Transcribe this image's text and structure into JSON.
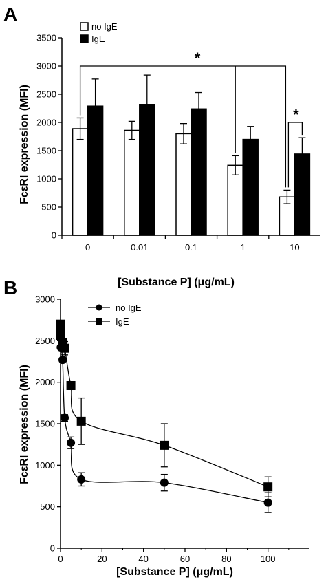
{
  "chart_data": [
    {
      "panel": "A",
      "type": "bar",
      "categories": [
        "0",
        "0.01",
        "0.1",
        "1",
        "10"
      ],
      "series": [
        {
          "name": "no IgE",
          "values": [
            1890,
            1860,
            1800,
            1240,
            680
          ],
          "errors": [
            190,
            160,
            180,
            170,
            120
          ],
          "color": "#ffffff"
        },
        {
          "name": "IgE",
          "values": [
            2290,
            2320,
            2240,
            1700,
            1440
          ],
          "errors": [
            480,
            520,
            290,
            230,
            290
          ],
          "color": "#000000"
        }
      ],
      "xlabel": "[Substance P] (μg/mL)",
      "ylabel": "FcεRI expression (MFI)",
      "ylim": [
        0,
        3500
      ],
      "yticks": [
        "0",
        "500",
        "1000",
        "1500",
        "2000",
        "2500",
        "3000",
        "3500"
      ],
      "legend_position": "top-left",
      "significance": [
        {
          "label": "*",
          "between": "0 no IgE – 10 no IgE"
        },
        {
          "label": "*",
          "between": "10 no IgE – 10 IgE"
        }
      ]
    },
    {
      "panel": "B",
      "type": "line",
      "series": [
        {
          "name": "no IgE",
          "marker": "circle",
          "x": [
            0,
            0.01,
            0.1,
            1,
            2,
            5,
            10,
            50,
            100
          ],
          "y": [
            2620,
            2530,
            2420,
            2270,
            1570,
            1270,
            830,
            790,
            550
          ],
          "errors": [
            0,
            0,
            0,
            0,
            40,
            70,
            80,
            100,
            120
          ]
        },
        {
          "name": "IgE",
          "marker": "square",
          "x": [
            0,
            0.01,
            0.1,
            1,
            2,
            5,
            10,
            50,
            100
          ],
          "y": [
            2700,
            2640,
            2560,
            2480,
            2410,
            1960,
            1530,
            1240,
            740
          ],
          "errors": [
            0,
            0,
            0,
            0,
            80,
            40,
            280,
            260,
            120
          ]
        }
      ],
      "xlabel": "[Substance P] (μg/mL)",
      "ylabel": "FcεRI expression (MFI)",
      "xlim": [
        0,
        120
      ],
      "ylim": [
        0,
        3000
      ],
      "xticks": [
        "0",
        "20",
        "40",
        "60",
        "80",
        "100"
      ],
      "yticks": [
        "0",
        "500",
        "1000",
        "1500",
        "2000",
        "2500",
        "3000"
      ],
      "legend_position": "top-left"
    }
  ]
}
